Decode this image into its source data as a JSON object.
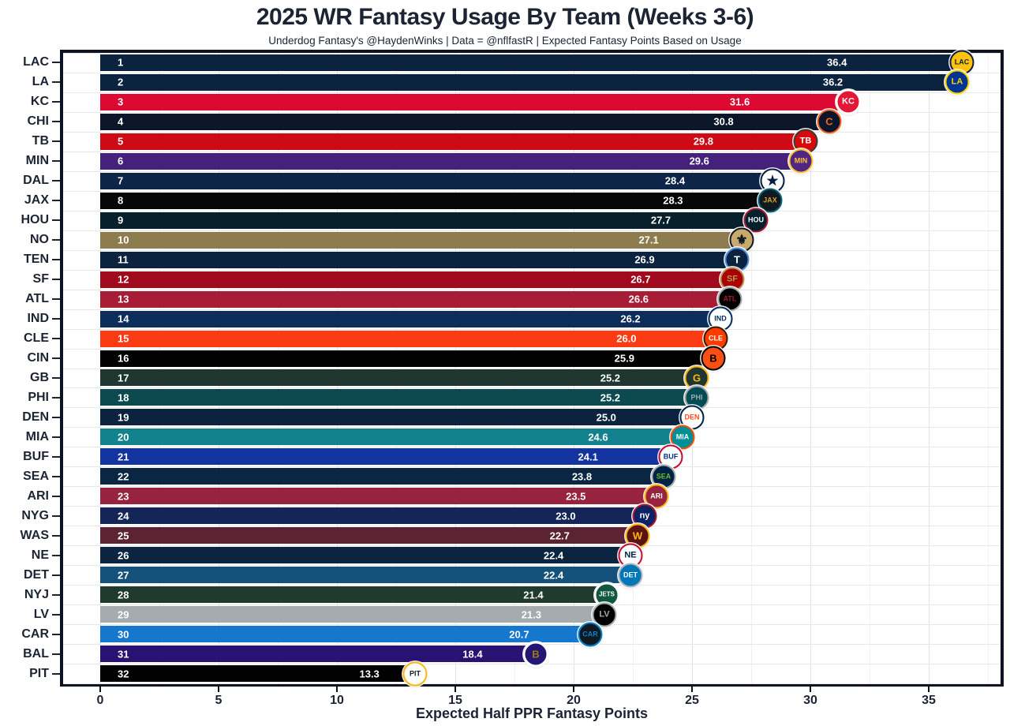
{
  "chart_data": {
    "type": "bar",
    "orientation": "horizontal",
    "title": "2025 WR Fantasy Usage By Team (Weeks 3-6)",
    "subtitle": "Underdog Fantasy's @HaydenWinks | Data = @nflfastR | Expected Fantasy Points Based on Usage",
    "xlabel": "Expected Half PPR Fantasy Points",
    "xlim": [
      0,
      38
    ],
    "x_ticks_major": [
      0,
      5,
      10,
      15,
      20,
      25,
      30,
      35
    ],
    "x_tick_minor_step": 2.5,
    "grid": "on",
    "legend": "none",
    "categories": [
      "LAC",
      "LA",
      "KC",
      "CHI",
      "TB",
      "MIN",
      "DAL",
      "JAX",
      "HOU",
      "NO",
      "TEN",
      "SF",
      "ATL",
      "IND",
      "CLE",
      "CIN",
      "GB",
      "PHI",
      "DEN",
      "MIA",
      "BUF",
      "SEA",
      "ARI",
      "NYG",
      "WAS",
      "NE",
      "DET",
      "NYJ",
      "LV",
      "CAR",
      "BAL",
      "PIT"
    ],
    "values": [
      36.4,
      36.2,
      31.6,
      30.8,
      29.8,
      29.6,
      28.4,
      28.3,
      27.7,
      27.1,
      26.9,
      26.7,
      26.6,
      26.2,
      26.0,
      25.9,
      25.2,
      25.2,
      25.0,
      24.6,
      24.1,
      23.8,
      23.5,
      23.0,
      22.7,
      22.4,
      22.4,
      21.4,
      21.3,
      20.7,
      18.4,
      13.3
    ],
    "teams": [
      {
        "abbr": "LAC",
        "rank": 1,
        "value": 36.4,
        "label": "36.4",
        "color": "#0c2340",
        "logo": {
          "bg": "#ffc20e",
          "fg": "#0a2140",
          "ring": "#0a2140",
          "text": "LAC"
        }
      },
      {
        "abbr": "LA",
        "rank": 2,
        "value": 36.2,
        "label": "36.2",
        "color": "#0c2340",
        "logo": {
          "bg": "#003594",
          "fg": "#ffd100",
          "ring": "#ffd100",
          "text": "LA"
        }
      },
      {
        "abbr": "KC",
        "rank": 3,
        "value": 31.6,
        "label": "31.6",
        "color": "#dc0a33",
        "logo": {
          "bg": "#e31837",
          "fg": "#ffffff",
          "ring": "#ffffff",
          "text": "KC"
        }
      },
      {
        "abbr": "CHI",
        "rank": 4,
        "value": 30.8,
        "label": "30.8",
        "color": "#0b162a",
        "logo": {
          "bg": "#0b162a",
          "fg": "#f26522",
          "ring": "#f26522",
          "text": "C"
        }
      },
      {
        "abbr": "TB",
        "rank": 5,
        "value": 29.8,
        "label": "29.8",
        "color": "#ce0a14",
        "logo": {
          "bg": "#d50a0a",
          "fg": "#ffffff",
          "ring": "#3e3a35",
          "text": "TB"
        }
      },
      {
        "abbr": "MIN",
        "rank": 6,
        "value": 29.6,
        "label": "29.6",
        "color": "#45217c",
        "logo": {
          "bg": "#4f2683",
          "fg": "#ffc62f",
          "ring": "#ffc62f",
          "text": "MIN"
        }
      },
      {
        "abbr": "DAL",
        "rank": 7,
        "value": 28.4,
        "label": "28.4",
        "color": "#0d2647",
        "logo": {
          "bg": "#ffffff",
          "fg": "#041e42",
          "ring": "#041e42",
          "text": "★"
        }
      },
      {
        "abbr": "JAX",
        "rank": 8,
        "value": 28.3,
        "label": "28.3",
        "color": "#050708",
        "logo": {
          "bg": "#101820",
          "fg": "#d7a22a",
          "ring": "#006778",
          "text": "JAX"
        }
      },
      {
        "abbr": "HOU",
        "rank": 9,
        "value": 27.7,
        "label": "27.7",
        "color": "#081f2c",
        "logo": {
          "bg": "#03202f",
          "fg": "#ffffff",
          "ring": "#a71930",
          "text": "HOU"
        }
      },
      {
        "abbr": "NO",
        "rank": 10,
        "value": 27.1,
        "label": "27.1",
        "color": "#8d7c4e",
        "logo": {
          "bg": "#c8aa6e",
          "fg": "#101820",
          "ring": "#101820",
          "text": "⚜"
        }
      },
      {
        "abbr": "TEN",
        "rank": 11,
        "value": 26.9,
        "label": "26.9",
        "color": "#0c2340",
        "logo": {
          "bg": "#0c2340",
          "fg": "#ffffff",
          "ring": "#4b92db",
          "text": "T"
        }
      },
      {
        "abbr": "SF",
        "rank": 12,
        "value": 26.7,
        "label": "26.7",
        "color": "#a00a1c",
        "logo": {
          "bg": "#aa0000",
          "fg": "#b3995d",
          "ring": "#b3995d",
          "text": "SF"
        }
      },
      {
        "abbr": "ATL",
        "rank": 13,
        "value": 26.6,
        "label": "26.6",
        "color": "#a61d35",
        "logo": {
          "bg": "#000000",
          "fg": "#a71930",
          "ring": "#a5acaf",
          "text": "ATL"
        }
      },
      {
        "abbr": "IND",
        "rank": 14,
        "value": 26.2,
        "label": "26.2",
        "color": "#0d2d5a",
        "logo": {
          "bg": "#ffffff",
          "fg": "#002c5f",
          "ring": "#002c5f",
          "text": "IND"
        }
      },
      {
        "abbr": "CLE",
        "rank": 15,
        "value": 26.0,
        "label": "26.0",
        "color": "#fb3b13",
        "logo": {
          "bg": "#ff3c00",
          "fg": "#ffffff",
          "ring": "#311d00",
          "text": "CLE"
        }
      },
      {
        "abbr": "CIN",
        "rank": 16,
        "value": 25.9,
        "label": "25.9",
        "color": "#020202",
        "logo": {
          "bg": "#fb4f14",
          "fg": "#000000",
          "ring": "#000000",
          "text": "B"
        }
      },
      {
        "abbr": "GB",
        "rank": 17,
        "value": 25.2,
        "label": "25.2",
        "color": "#203731",
        "logo": {
          "bg": "#203731",
          "fg": "#ffb612",
          "ring": "#ffb612",
          "text": "G"
        }
      },
      {
        "abbr": "PHI",
        "rank": 18,
        "value": 25.2,
        "label": "25.2",
        "color": "#0d4a50",
        "logo": {
          "bg": "#004c54",
          "fg": "#a5acaf",
          "ring": "#a5acaf",
          "text": "PHI"
        }
      },
      {
        "abbr": "DEN",
        "rank": 19,
        "value": 25.0,
        "label": "25.0",
        "color": "#0c2340",
        "logo": {
          "bg": "#ffffff",
          "fg": "#fb4f14",
          "ring": "#002244",
          "text": "DEN"
        }
      },
      {
        "abbr": "MIA",
        "rank": 20,
        "value": 24.6,
        "label": "24.6",
        "color": "#12828e",
        "logo": {
          "bg": "#008e97",
          "fg": "#ffffff",
          "ring": "#fc4c02",
          "text": "MIA"
        }
      },
      {
        "abbr": "BUF",
        "rank": 21,
        "value": 24.1,
        "label": "24.1",
        "color": "#1233a0",
        "logo": {
          "bg": "#ffffff",
          "fg": "#00338d",
          "ring": "#c60c30",
          "text": "BUF"
        }
      },
      {
        "abbr": "SEA",
        "rank": 22,
        "value": 23.8,
        "label": "23.8",
        "color": "#0b2642",
        "logo": {
          "bg": "#002244",
          "fg": "#69be28",
          "ring": "#a5acaf",
          "text": "SEA"
        }
      },
      {
        "abbr": "ARI",
        "rank": 23,
        "value": 23.5,
        "label": "23.5",
        "color": "#97233f",
        "logo": {
          "bg": "#97233f",
          "fg": "#ffffff",
          "ring": "#ffb612",
          "text": "ARI"
        }
      },
      {
        "abbr": "NYG",
        "rank": 24,
        "value": 23.0,
        "label": "23.0",
        "color": "#142558",
        "logo": {
          "bg": "#0b2265",
          "fg": "#ffffff",
          "ring": "#a71930",
          "text": "ny"
        }
      },
      {
        "abbr": "WAS",
        "rank": 25,
        "value": 22.7,
        "label": "22.7",
        "color": "#5b2333",
        "logo": {
          "bg": "#5a1414",
          "fg": "#ffb612",
          "ring": "#ffb612",
          "text": "W"
        }
      },
      {
        "abbr": "NE",
        "rank": 26,
        "value": 22.4,
        "label": "22.4",
        "color": "#0b2440",
        "logo": {
          "bg": "#ffffff",
          "fg": "#002244",
          "ring": "#c60c30",
          "text": "NE"
        }
      },
      {
        "abbr": "DET",
        "rank": 27,
        "value": 22.4,
        "label": "22.4",
        "color": "#14527c",
        "logo": {
          "bg": "#0076b6",
          "fg": "#ffffff",
          "ring": "#b0b7bc",
          "text": "DET"
        }
      },
      {
        "abbr": "NYJ",
        "rank": 28,
        "value": 21.4,
        "label": "21.4",
        "color": "#203a2e",
        "logo": {
          "bg": "#125740",
          "fg": "#ffffff",
          "ring": "#ffffff",
          "text": "JETS"
        }
      },
      {
        "abbr": "LV",
        "rank": 29,
        "value": 21.3,
        "label": "21.3",
        "color": "#a5acaf",
        "logo": {
          "bg": "#000000",
          "fg": "#a5acaf",
          "ring": "#a5acaf",
          "text": "LV"
        }
      },
      {
        "abbr": "CAR",
        "rank": 30,
        "value": 20.7,
        "label": "20.7",
        "color": "#1577ce",
        "logo": {
          "bg": "#101820",
          "fg": "#0085ca",
          "ring": "#0085ca",
          "text": "CAR"
        }
      },
      {
        "abbr": "BAL",
        "rank": 31,
        "value": 18.4,
        "label": "18.4",
        "color": "#2a1273",
        "logo": {
          "bg": "#241773",
          "fg": "#9e7c0c",
          "ring": "#ffffff",
          "text": "B"
        }
      },
      {
        "abbr": "PIT",
        "rank": 32,
        "value": 13.3,
        "label": "13.3",
        "color": "#020202",
        "logo": {
          "bg": "#ffffff",
          "fg": "#101820",
          "ring": "#ffb612",
          "text": "PIT"
        }
      }
    ],
    "style": {
      "text_color": "#1c2433",
      "panel_border": "#0d1320",
      "grid_major": "#e3e3e3",
      "grid_minor": "#f1f1f1",
      "bar_label_color": "#ffffff"
    }
  }
}
